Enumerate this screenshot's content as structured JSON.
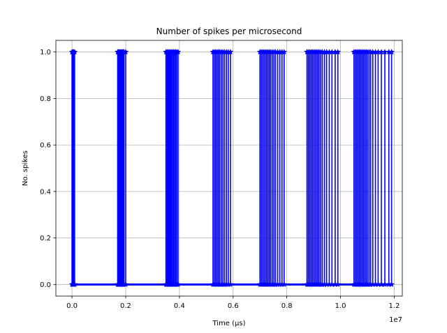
{
  "chart_data": {
    "type": "line",
    "title": "Number of spikes per microsecond",
    "xlabel": "Time (μs)",
    "ylabel": "No. spikes",
    "x_offset_label": "1e7",
    "xlim": [
      -0.06,
      1.23
    ],
    "ylim": [
      -0.05,
      1.05
    ],
    "x_scale_note": "x values in units of 1e7 μs",
    "xticks": [
      0.0,
      0.2,
      0.4,
      0.6,
      0.8,
      1.0,
      1.2
    ],
    "xtick_labels": [
      "0.0",
      "0.2",
      "0.4",
      "0.6",
      "0.8",
      "1.0",
      "1.2"
    ],
    "yticks": [
      0.0,
      0.2,
      0.4,
      0.6,
      0.8,
      1.0
    ],
    "ytick_labels": [
      "0.0",
      "0.2",
      "0.4",
      "0.6",
      "0.8",
      "1.0"
    ],
    "grid": true,
    "series": [
      {
        "color": "#0000ff",
        "marker": "star",
        "baseline_x": [
          0.0,
          1.19
        ],
        "spike_times": [
          0.0,
          0.003,
          0.006,
          0.01,
          0.17,
          0.173,
          0.176,
          0.179,
          0.182,
          0.185,
          0.188,
          0.191,
          0.194,
          0.2,
          0.35,
          0.354,
          0.358,
          0.362,
          0.366,
          0.37,
          0.374,
          0.378,
          0.382,
          0.386,
          0.39,
          0.395,
          0.525,
          0.53,
          0.535,
          0.54,
          0.545,
          0.55,
          0.556,
          0.562,
          0.568,
          0.575,
          0.582,
          0.59,
          0.7,
          0.705,
          0.71,
          0.715,
          0.72,
          0.725,
          0.73,
          0.735,
          0.74,
          0.746,
          0.752,
          0.758,
          0.766,
          0.774,
          0.782,
          0.79,
          0.875,
          0.88,
          0.885,
          0.89,
          0.895,
          0.9,
          0.905,
          0.91,
          0.915,
          0.92,
          0.926,
          0.932,
          0.94,
          0.948,
          0.958,
          0.968,
          0.98,
          0.99,
          1.05,
          1.055,
          1.06,
          1.065,
          1.07,
          1.075,
          1.08,
          1.085,
          1.09,
          1.095,
          1.1,
          1.106,
          1.112,
          1.12,
          1.13,
          1.14,
          1.152,
          1.165,
          1.18,
          1.19
        ]
      }
    ]
  }
}
